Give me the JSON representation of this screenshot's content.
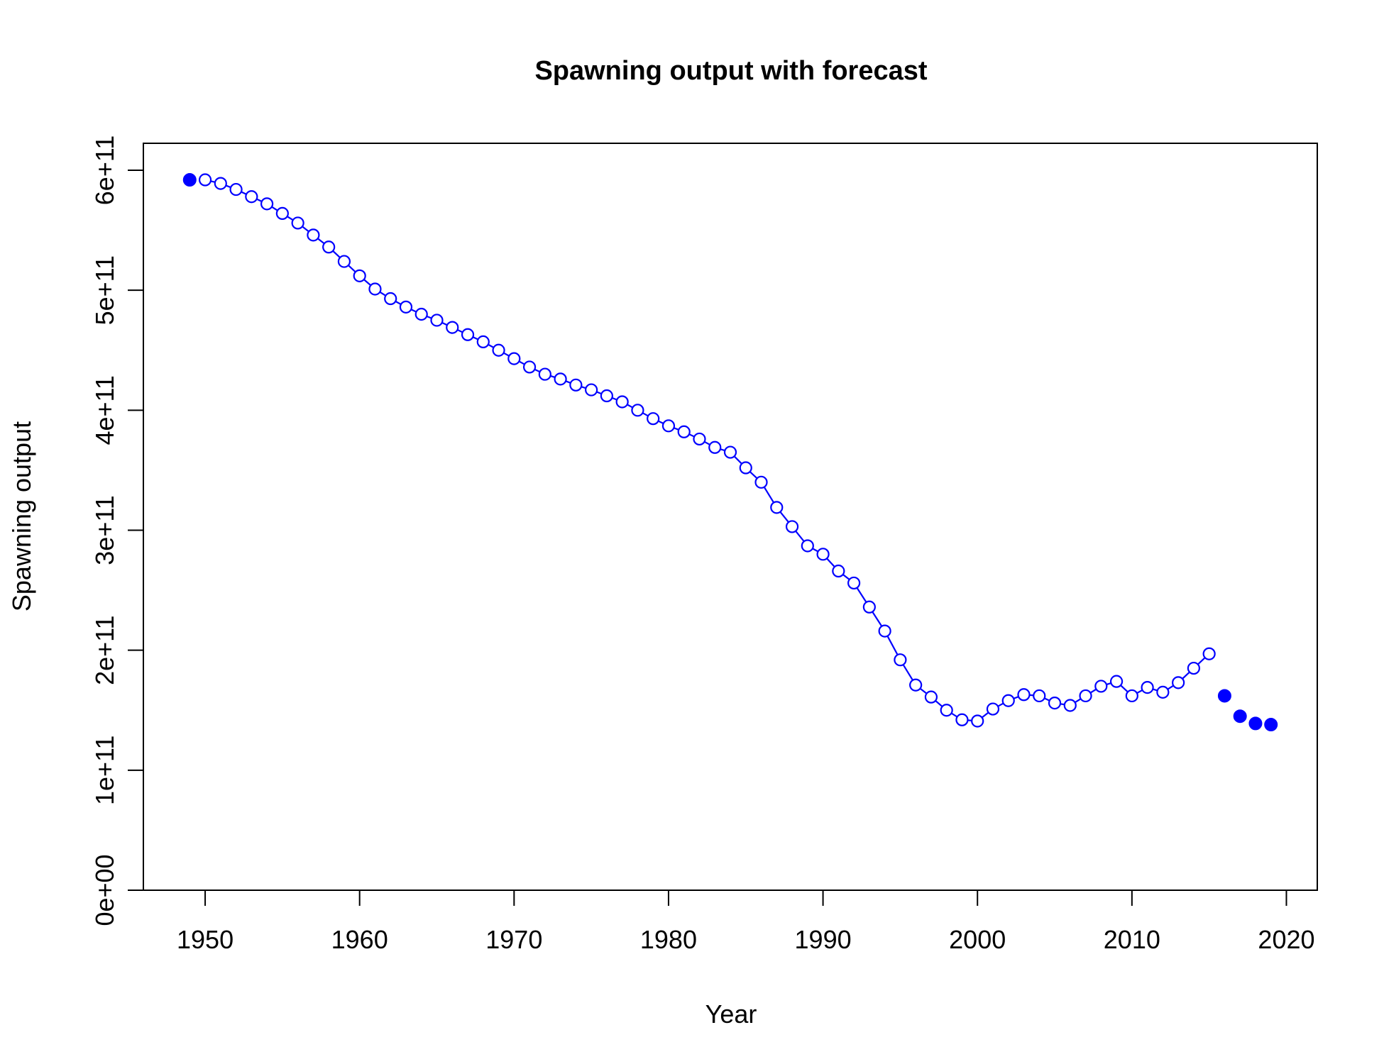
{
  "chart_data": {
    "type": "line",
    "title": "Spawning output with forecast",
    "xlabel": "Year",
    "ylabel": "Spawning output",
    "xlim": [
      1946,
      2022
    ],
    "ylim": [
      0,
      600000000000
    ],
    "x_ticks": [
      1950,
      1960,
      1970,
      1980,
      1990,
      2000,
      2010,
      2020
    ],
    "x_tick_labels": [
      "1950",
      "1960",
      "1970",
      "1980",
      "1990",
      "2000",
      "2010",
      "2020"
    ],
    "y_ticks": [
      0,
      100000000000,
      200000000000,
      300000000000,
      400000000000,
      500000000000,
      600000000000
    ],
    "y_tick_labels": [
      "0e+00",
      "1e+11",
      "2e+11",
      "3e+11",
      "4e+11",
      "5e+11",
      "6e+11"
    ],
    "grid": false,
    "color": "#0000ff",
    "series": [
      {
        "style": "line-open-circles",
        "x": [
          1950,
          1951,
          1952,
          1953,
          1954,
          1955,
          1956,
          1957,
          1958,
          1959,
          1960,
          1961,
          1962,
          1963,
          1964,
          1965,
          1966,
          1967,
          1968,
          1969,
          1970,
          1971,
          1972,
          1973,
          1974,
          1975,
          1976,
          1977,
          1978,
          1979,
          1980,
          1981,
          1982,
          1983,
          1984,
          1985,
          1986,
          1987,
          1988,
          1989,
          1990,
          1991,
          1992,
          1993,
          1994,
          1995,
          1996,
          1997,
          1998,
          1999,
          2000,
          2001,
          2002,
          2003,
          2004,
          2005,
          2006,
          2007,
          2008,
          2009,
          2010,
          2011,
          2012,
          2013,
          2014,
          2015
        ],
        "y": [
          592000000000,
          589000000000,
          584000000000,
          578000000000,
          572000000000,
          564000000000,
          556000000000,
          546000000000,
          536000000000,
          524000000000,
          512000000000,
          501000000000,
          493000000000,
          486000000000,
          480000000000,
          475000000000,
          469000000000,
          463000000000,
          457000000000,
          450000000000,
          443000000000,
          436000000000,
          430000000000,
          426000000000,
          421000000000,
          417000000000,
          412000000000,
          407000000000,
          400000000000,
          393000000000,
          387000000000,
          382000000000,
          376000000000,
          369000000000,
          365000000000,
          352000000000,
          340000000000,
          319000000000,
          303000000000,
          287000000000,
          280000000000,
          266000000000,
          256000000000,
          236000000000,
          216000000000,
          192000000000,
          171000000000,
          161000000000,
          150000000000,
          142000000000,
          141000000000,
          151000000000,
          158000000000,
          163000000000,
          162000000000,
          156000000000,
          154000000000,
          162000000000,
          170000000000,
          174000000000,
          162000000000,
          169000000000,
          165000000000,
          173000000000,
          185000000000,
          197000000000
        ]
      },
      {
        "style": "filled-points",
        "x": [
          1949,
          2016,
          2017,
          2018,
          2019
        ],
        "y": [
          592000000000,
          162000000000,
          145000000000,
          139000000000,
          138000000000
        ]
      }
    ]
  }
}
